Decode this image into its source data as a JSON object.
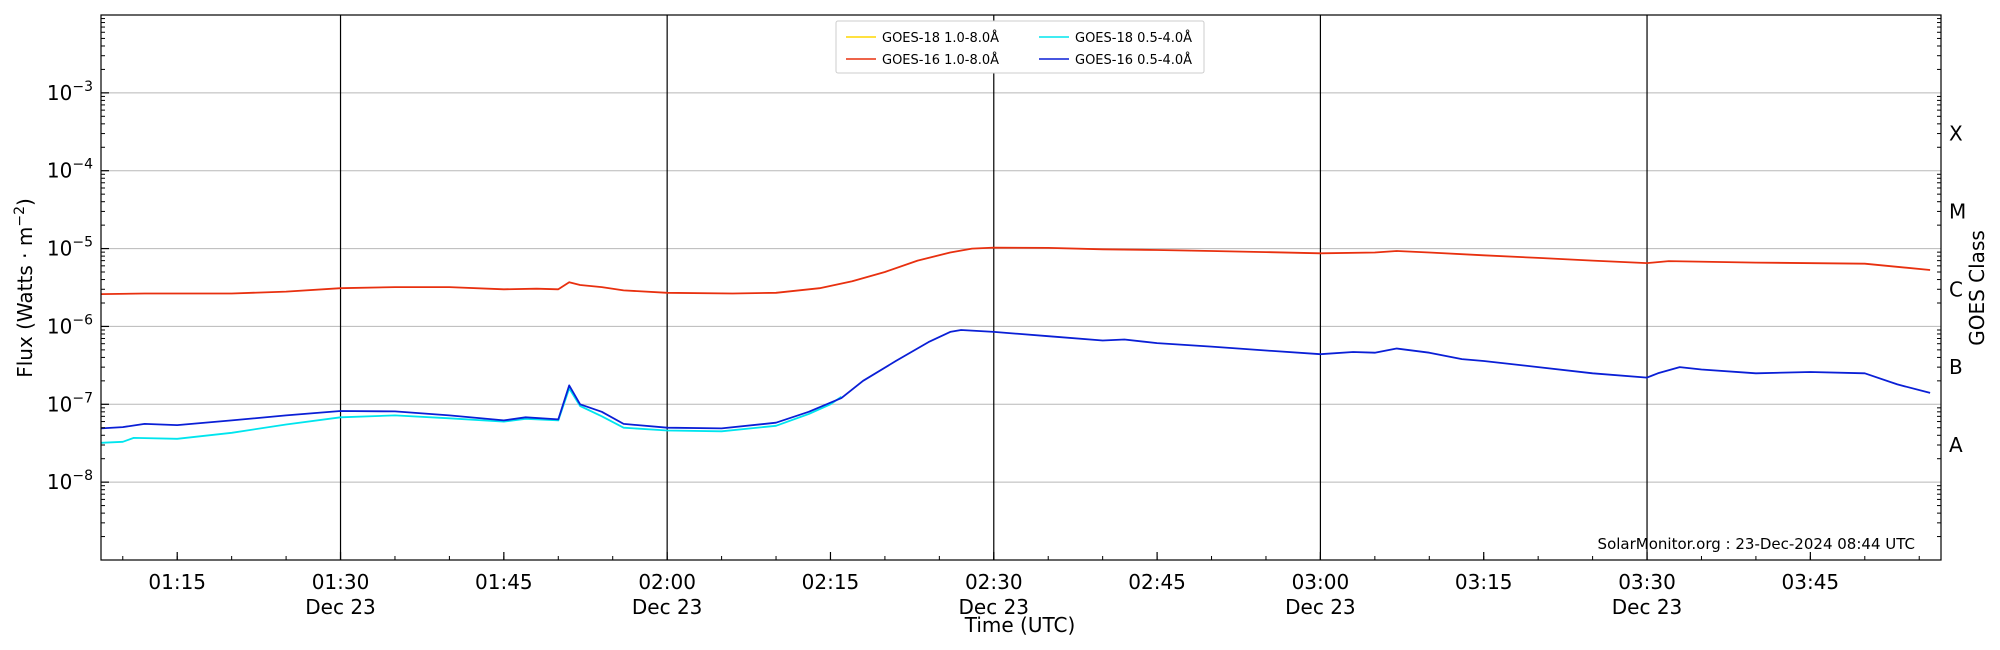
{
  "chart_data": {
    "type": "line",
    "title": "",
    "xlabel": "Time (UTC)",
    "ylabel_main": "Flux (Watts · m",
    "ylabel_sup": "−2",
    "ylabel_close": ")",
    "right_label": "GOES Class",
    "credit": "SolarMonitor.org : 23-Dec-2024 08:44 UTC",
    "yscale": "log",
    "ylim": [
      1e-09,
      0.01
    ],
    "xlim": [
      "01:08",
      "03:57"
    ],
    "grid": "horizontal at decades; vertical at 30-minute marks",
    "legend_position": "top-center",
    "x_ticks": [
      {
        "time": "01:15",
        "date": ""
      },
      {
        "time": "01:30",
        "date": "Dec 23"
      },
      {
        "time": "01:45",
        "date": ""
      },
      {
        "time": "02:00",
        "date": "Dec 23"
      },
      {
        "time": "02:15",
        "date": ""
      },
      {
        "time": "02:30",
        "date": "Dec 23"
      },
      {
        "time": "02:45",
        "date": ""
      },
      {
        "time": "03:00",
        "date": "Dec 23"
      },
      {
        "time": "03:15",
        "date": ""
      },
      {
        "time": "03:30",
        "date": "Dec 23"
      },
      {
        "time": "03:45",
        "date": ""
      }
    ],
    "y_ticks": [
      {
        "value": 1e-08,
        "base": "10",
        "exp": "−8"
      },
      {
        "value": 1e-07,
        "base": "10",
        "exp": "−7"
      },
      {
        "value": 1e-06,
        "base": "10",
        "exp": "−6"
      },
      {
        "value": 1e-05,
        "base": "10",
        "exp": "−5"
      },
      {
        "value": 0.0001,
        "base": "10",
        "exp": "−4"
      },
      {
        "value": 0.001,
        "base": "10",
        "exp": "−3"
      }
    ],
    "goes_classes": [
      {
        "label": "A",
        "flux": 3e-08
      },
      {
        "label": "B",
        "flux": 3e-07
      },
      {
        "label": "C",
        "flux": 3e-06
      },
      {
        "label": "M",
        "flux": 3e-05
      },
      {
        "label": "X",
        "flux": 0.0003
      }
    ],
    "series": [
      {
        "name": "GOES-18 1.0-8.0Å",
        "color": "#FFD700",
        "points": []
      },
      {
        "name": "GOES-16 1.0-8.0Å",
        "color": "#E8300F",
        "points": [
          [
            "01:08",
            2.6e-06
          ],
          [
            "01:12",
            2.65e-06
          ],
          [
            "01:20",
            2.65e-06
          ],
          [
            "01:25",
            2.8e-06
          ],
          [
            "01:30",
            3.1e-06
          ],
          [
            "01:35",
            3.2e-06
          ],
          [
            "01:40",
            3.2e-06
          ],
          [
            "01:45",
            3e-06
          ],
          [
            "01:48",
            3.05e-06
          ],
          [
            "01:50",
            3e-06
          ],
          [
            "01:51",
            3.7e-06
          ],
          [
            "01:52",
            3.4e-06
          ],
          [
            "01:54",
            3.2e-06
          ],
          [
            "01:56",
            2.9e-06
          ],
          [
            "02:00",
            2.7e-06
          ],
          [
            "02:06",
            2.65e-06
          ],
          [
            "02:10",
            2.7e-06
          ],
          [
            "02:14",
            3.1e-06
          ],
          [
            "02:17",
            3.8e-06
          ],
          [
            "02:20",
            5e-06
          ],
          [
            "02:23",
            7e-06
          ],
          [
            "02:26",
            8.9e-06
          ],
          [
            "02:28",
            1e-05
          ],
          [
            "02:30",
            1.03e-05
          ],
          [
            "02:35",
            1.02e-05
          ],
          [
            "02:40",
            9.8e-06
          ],
          [
            "02:45",
            9.6e-06
          ],
          [
            "02:50",
            9.3e-06
          ],
          [
            "02:55",
            9e-06
          ],
          [
            "03:00",
            8.7e-06
          ],
          [
            "03:05",
            8.9e-06
          ],
          [
            "03:07",
            9.3e-06
          ],
          [
            "03:10",
            8.9e-06
          ],
          [
            "03:15",
            8.2e-06
          ],
          [
            "03:20",
            7.6e-06
          ],
          [
            "03:25",
            7e-06
          ],
          [
            "03:30",
            6.5e-06
          ],
          [
            "03:32",
            6.9e-06
          ],
          [
            "03:40",
            6.6e-06
          ],
          [
            "03:50",
            6.4e-06
          ],
          [
            "03:52",
            6e-06
          ],
          [
            "03:56",
            5.3e-06
          ]
        ]
      },
      {
        "name": "GOES-18 0.5-4.0Å",
        "color": "#00E5EE",
        "points": [
          [
            "01:08",
            3.2e-08
          ],
          [
            "01:10",
            3.3e-08
          ],
          [
            "01:11",
            3.7e-08
          ],
          [
            "01:15",
            3.6e-08
          ],
          [
            "01:20",
            4.3e-08
          ],
          [
            "01:25",
            5.5e-08
          ],
          [
            "01:30",
            6.8e-08
          ],
          [
            "01:35",
            7.2e-08
          ],
          [
            "01:40",
            6.6e-08
          ],
          [
            "01:45",
            6e-08
          ],
          [
            "01:47",
            6.5e-08
          ],
          [
            "01:50",
            6.2e-08
          ],
          [
            "01:51",
            1.6e-07
          ],
          [
            "01:52",
            9.5e-08
          ],
          [
            "01:54",
            7e-08
          ],
          [
            "01:56",
            5e-08
          ],
          [
            "02:00",
            4.6e-08
          ],
          [
            "02:05",
            4.5e-08
          ],
          [
            "02:10",
            5.3e-08
          ],
          [
            "02:13",
            7.5e-08
          ],
          [
            "02:15",
            1e-07
          ],
          [
            "02:16",
            1.25e-07
          ]
        ]
      },
      {
        "name": "GOES-16 0.5-4.0Å",
        "color": "#0A1FD6",
        "points": [
          [
            "01:08",
            4.9e-08
          ],
          [
            "01:10",
            5.1e-08
          ],
          [
            "01:12",
            5.6e-08
          ],
          [
            "01:15",
            5.4e-08
          ],
          [
            "01:20",
            6.2e-08
          ],
          [
            "01:25",
            7.2e-08
          ],
          [
            "01:30",
            8.2e-08
          ],
          [
            "01:35",
            8.1e-08
          ],
          [
            "01:40",
            7.2e-08
          ],
          [
            "01:45",
            6.2e-08
          ],
          [
            "01:47",
            6.8e-08
          ],
          [
            "01:50",
            6.4e-08
          ],
          [
            "01:51",
            1.75e-07
          ],
          [
            "01:52",
            1e-07
          ],
          [
            "01:54",
            8e-08
          ],
          [
            "01:56",
            5.6e-08
          ],
          [
            "02:00",
            5e-08
          ],
          [
            "02:05",
            4.9e-08
          ],
          [
            "02:10",
            5.8e-08
          ],
          [
            "02:13",
            8e-08
          ],
          [
            "02:16",
            1.2e-07
          ],
          [
            "02:18",
            2e-07
          ],
          [
            "02:21",
            3.6e-07
          ],
          [
            "02:24",
            6.3e-07
          ],
          [
            "02:26",
            8.5e-07
          ],
          [
            "02:27",
            9e-07
          ],
          [
            "02:30",
            8.5e-07
          ],
          [
            "02:35",
            7.5e-07
          ],
          [
            "02:40",
            6.6e-07
          ],
          [
            "02:42",
            6.8e-07
          ],
          [
            "02:45",
            6.1e-07
          ],
          [
            "02:50",
            5.5e-07
          ],
          [
            "02:55",
            4.9e-07
          ],
          [
            "03:00",
            4.4e-07
          ],
          [
            "03:03",
            4.7e-07
          ],
          [
            "03:05",
            4.6e-07
          ],
          [
            "03:07",
            5.2e-07
          ],
          [
            "03:10",
            4.6e-07
          ],
          [
            "03:13",
            3.8e-07
          ],
          [
            "03:15",
            3.6e-07
          ],
          [
            "03:20",
            3e-07
          ],
          [
            "03:25",
            2.5e-07
          ],
          [
            "03:30",
            2.2e-07
          ],
          [
            "03:31",
            2.5e-07
          ],
          [
            "03:33",
            3e-07
          ],
          [
            "03:35",
            2.8e-07
          ],
          [
            "03:40",
            2.5e-07
          ],
          [
            "03:45",
            2.6e-07
          ],
          [
            "03:50",
            2.5e-07
          ],
          [
            "03:53",
            1.8e-07
          ],
          [
            "03:56",
            1.4e-07
          ]
        ]
      }
    ]
  }
}
